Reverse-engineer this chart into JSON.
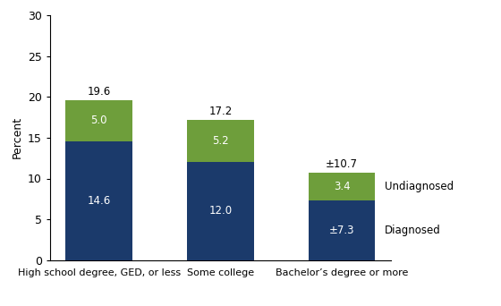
{
  "categories": [
    "High school degree, GED, or less",
    "Some college",
    "Bachelor’s degree or more"
  ],
  "diagnosed": [
    14.6,
    12.0,
    7.3
  ],
  "undiagnosed": [
    5.0,
    5.2,
    3.4
  ],
  "totals": [
    "19.6",
    "17.2",
    "±10.7"
  ],
  "diagnosed_labels": [
    "14.6",
    "12.0",
    "±7.3"
  ],
  "undiagnosed_labels": [
    "5.0",
    "5.2",
    "3.4"
  ],
  "diagnosed_color": "#1b3a6b",
  "undiagnosed_color": "#6e9e3b",
  "ylabel": "Percent",
  "ylim": [
    0,
    30
  ],
  "yticks": [
    0,
    5,
    10,
    15,
    20,
    25,
    30
  ],
  "legend_undiagnosed": "Undiagnosed",
  "legend_diagnosed": "Diagnosed",
  "background_color": "#ffffff",
  "bar_width": 0.55
}
